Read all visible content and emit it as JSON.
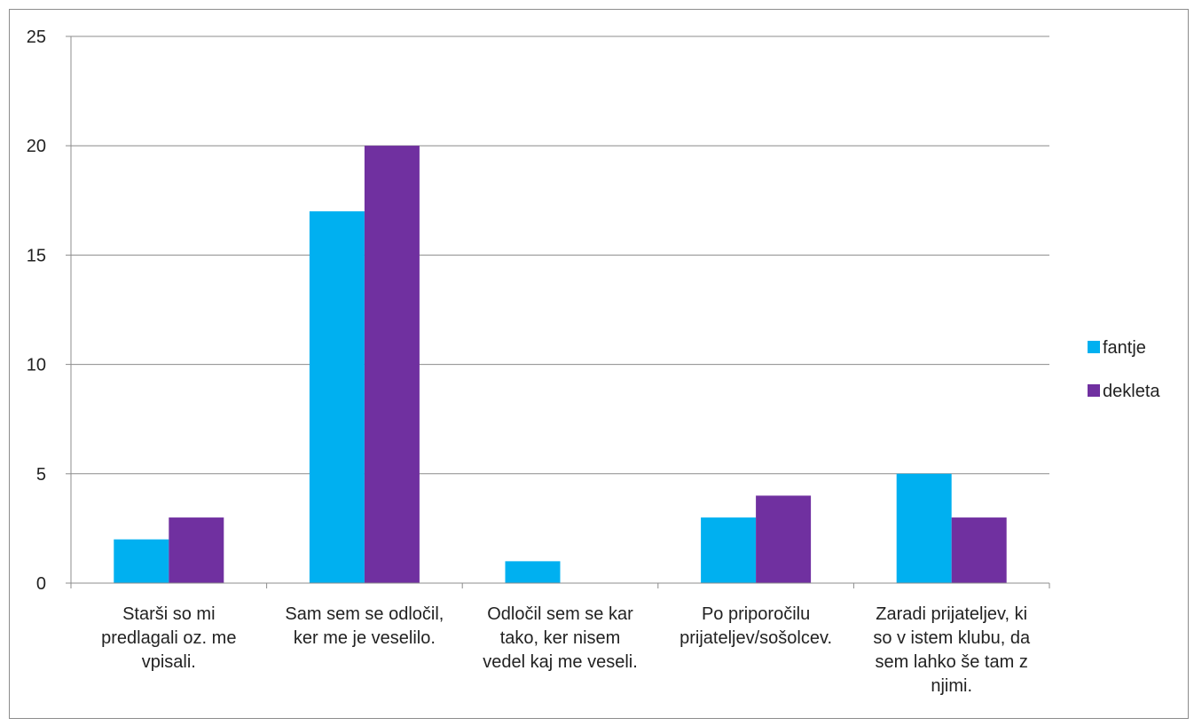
{
  "chart_data": {
    "type": "bar",
    "title": "",
    "xlabel": "",
    "ylabel": "",
    "ylim": [
      0,
      25
    ],
    "y_ticks": [
      0,
      5,
      10,
      15,
      20,
      25
    ],
    "grid": true,
    "legend_position": "right",
    "categories": [
      [
        "Starši so mi",
        "predlagali oz. me",
        "vpisali."
      ],
      [
        "Sam sem se odločil,",
        "ker me je veselilo."
      ],
      [
        "Odločil sem se kar",
        "tako, ker nisem",
        "vedel kaj me veseli."
      ],
      [
        "Po priporočilu",
        "prijateljev/sošolcev."
      ],
      [
        "Zaradi prijateljev, ki",
        "so v istem klubu, da",
        "sem lahko še tam z",
        "njimi."
      ]
    ],
    "series": [
      {
        "name": "fantje",
        "color": "#00b0f0",
        "values": [
          2,
          17,
          1,
          3,
          5
        ]
      },
      {
        "name": "dekleta",
        "color": "#7030a0",
        "values": [
          3,
          20,
          0,
          4,
          3
        ]
      }
    ]
  }
}
